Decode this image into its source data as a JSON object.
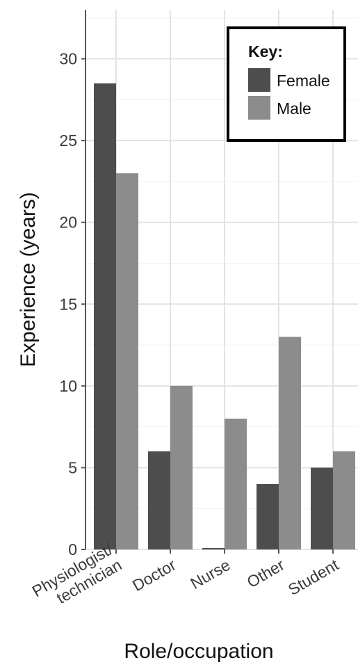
{
  "chart_data": {
    "type": "bar",
    "categories": [
      "Physiologist/ technician",
      "Doctor",
      "Nurse",
      "Other",
      "Student"
    ],
    "category_lines": [
      [
        "Physiologist/",
        "technician"
      ],
      [
        "Doctor"
      ],
      [
        "Nurse"
      ],
      [
        "Other"
      ],
      [
        "Student"
      ]
    ],
    "series": [
      {
        "name": "Female",
        "values": [
          28.5,
          6,
          0,
          4,
          5
        ],
        "color": "#4d4d4d"
      },
      {
        "name": "Male",
        "values": [
          23,
          10,
          8,
          13,
          6
        ],
        "color": "#8c8c8c"
      }
    ],
    "xlabel": "Role/occupation",
    "ylabel": "Experience  (years)",
    "ylim": [
      0,
      33
    ],
    "yticks": [
      0,
      5,
      10,
      15,
      20,
      25,
      30
    ],
    "grid": true,
    "legend": {
      "title": "Key:",
      "position": "top-right"
    }
  }
}
